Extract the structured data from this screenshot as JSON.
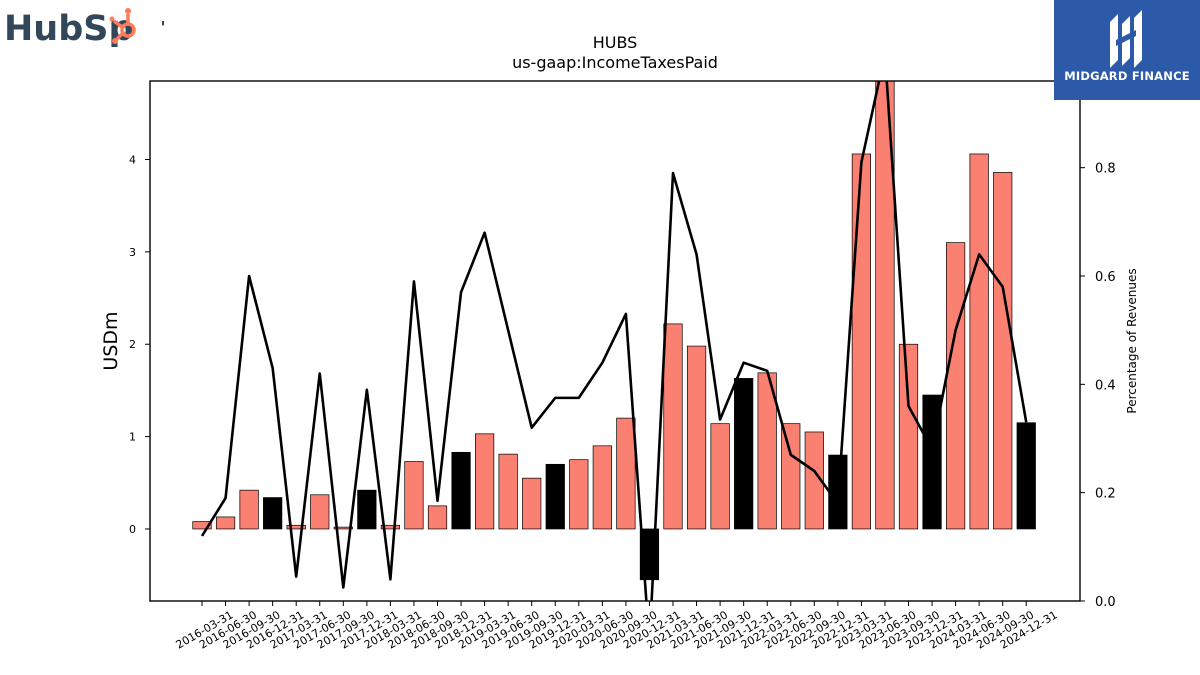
{
  "logos": {
    "left": {
      "text_a": "HubSp",
      "text_b": "t",
      "color": "#33475b",
      "accent": "#ff7a59"
    },
    "right": {
      "text": "MIDGARD FINANCE",
      "bg": "#2d5aa8"
    }
  },
  "chart_data": {
    "type": "bar",
    "title": "HUBS",
    "subtitle": "us-gaap:IncomeTaxesPaid",
    "ylabel": "USDm",
    "y2label": "Percentage of Revenues",
    "ylim": [
      -0.78,
      4.85
    ],
    "y2lim": [
      0.0,
      0.96
    ],
    "yticks": [
      0,
      1,
      2,
      3,
      4
    ],
    "y2ticks": [
      0.0,
      0.2,
      0.4,
      0.6,
      0.8
    ],
    "categories": [
      "2016-03-31",
      "2016-06-30",
      "2016-09-30",
      "2016-12-31",
      "2017-03-31",
      "2017-06-30",
      "2017-09-30",
      "2017-12-31",
      "2018-03-31",
      "2018-06-30",
      "2018-09-30",
      "2018-12-31",
      "2019-03-31",
      "2019-06-30",
      "2019-09-30",
      "2019-12-31",
      "2020-03-31",
      "2020-06-30",
      "2020-09-30",
      "2020-12-31",
      "2021-03-31",
      "2021-06-30",
      "2021-09-30",
      "2021-12-31",
      "2022-03-31",
      "2022-06-30",
      "2022-09-30",
      "2022-12-31",
      "2023-03-31",
      "2023-06-30",
      "2023-09-30",
      "2023-12-31",
      "2024-03-31",
      "2024-06-30",
      "2024-09-30",
      "2024-12-31"
    ],
    "series": [
      {
        "axis": "left",
        "kind": "bar",
        "values": [
          0.08,
          0.13,
          0.42,
          0.34,
          0.04,
          0.37,
          0.02,
          0.42,
          0.04,
          0.73,
          0.25,
          0.83,
          1.03,
          0.81,
          0.55,
          0.7,
          0.75,
          0.9,
          1.2,
          -0.55,
          2.22,
          1.98,
          1.14,
          1.63,
          1.69,
          1.14,
          1.05,
          0.8,
          4.06,
          4.87,
          2.0,
          1.45,
          3.1,
          4.06,
          3.86,
          1.15
        ],
        "colors": [
          "#fa8072",
          "#fa8072",
          "#fa8072",
          "#000000",
          "#fa8072",
          "#fa8072",
          "#fa8072",
          "#000000",
          "#fa8072",
          "#fa8072",
          "#fa8072",
          "#000000",
          "#fa8072",
          "#fa8072",
          "#fa8072",
          "#000000",
          "#fa8072",
          "#fa8072",
          "#fa8072",
          "#000000",
          "#fa8072",
          "#fa8072",
          "#fa8072",
          "#000000",
          "#fa8072",
          "#fa8072",
          "#fa8072",
          "#000000",
          "#fa8072",
          "#fa8072",
          "#fa8072",
          "#000000",
          "#fa8072",
          "#fa8072",
          "#fa8072",
          "#000000"
        ]
      },
      {
        "axis": "right",
        "kind": "line",
        "color": "#000000",
        "values": [
          0.12,
          0.19,
          0.6,
          0.43,
          0.045,
          0.42,
          0.025,
          0.39,
          0.04,
          0.59,
          0.185,
          0.57,
          0.68,
          0.5,
          0.32,
          0.375,
          0.375,
          0.44,
          0.53,
          -0.08,
          0.79,
          0.64,
          0.335,
          0.44,
          0.425,
          0.27,
          0.24,
          0.18,
          0.81,
          1.01,
          0.36,
          0.28,
          0.5,
          0.64,
          0.58,
          0.33
        ]
      }
    ],
    "grid": false,
    "legend": "none"
  }
}
